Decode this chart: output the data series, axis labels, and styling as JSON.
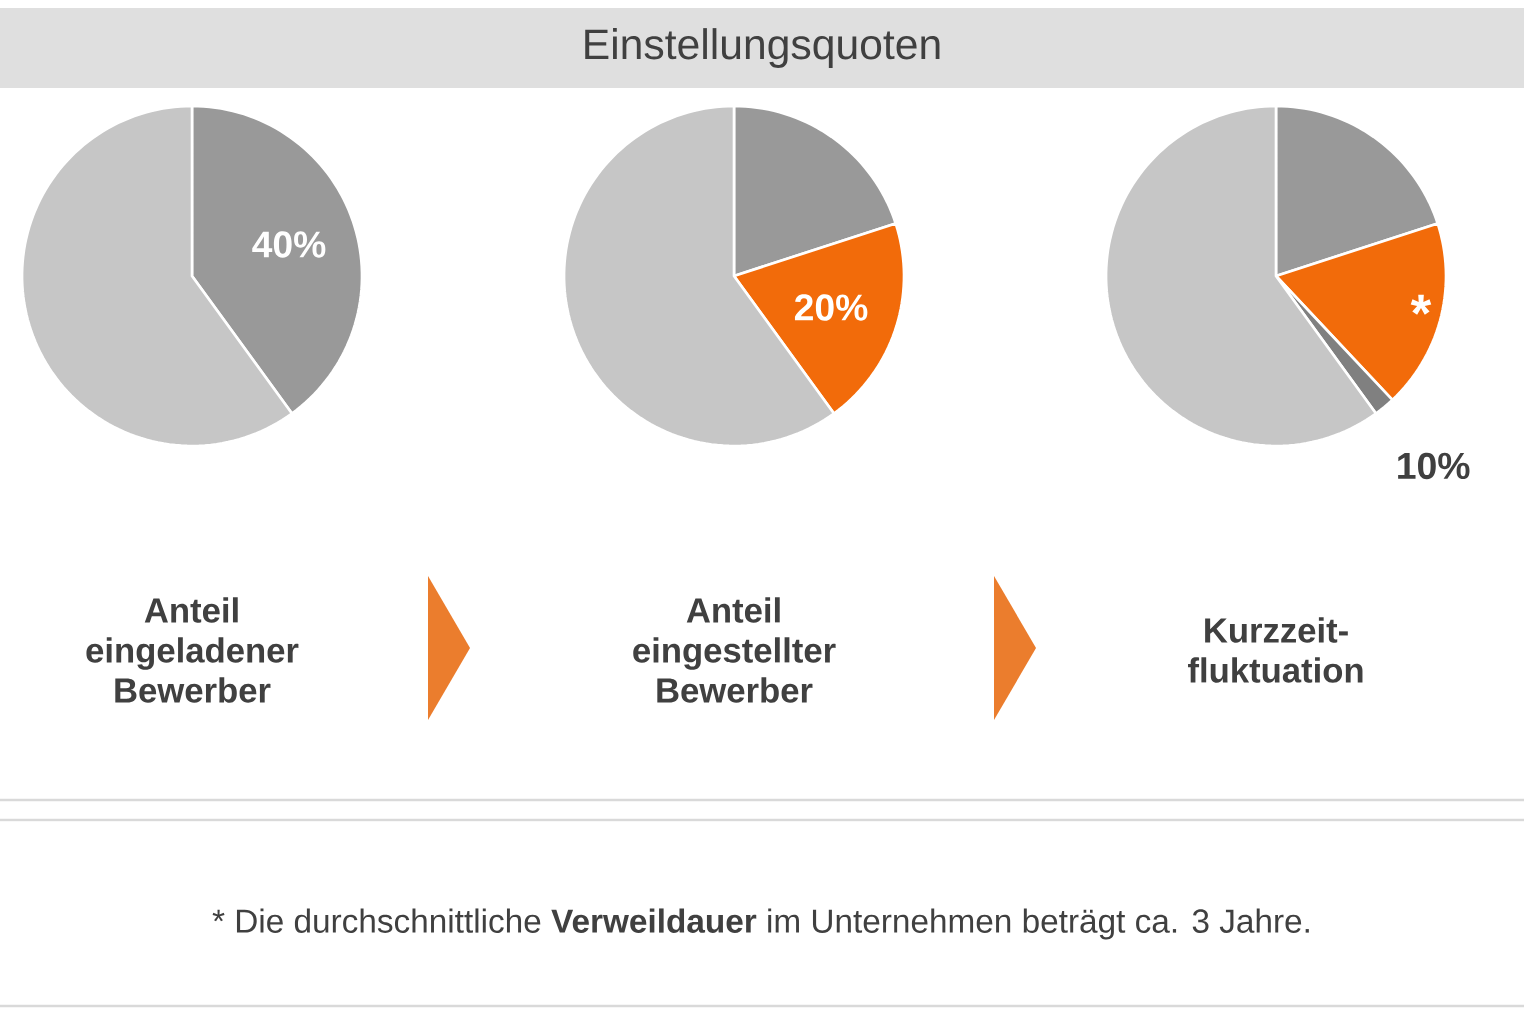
{
  "chart_data": [
    {
      "type": "pie",
      "categories": [
        null,
        null
      ],
      "values": [
        40,
        60
      ],
      "colors": [
        "#999999",
        "#c6c6c6"
      ],
      "value_labels": [
        "40%",
        null
      ],
      "xlabel": "Anteil eingeladener Bewerber"
    },
    {
      "type": "pie",
      "title": "Einstellungsquoten",
      "categories": [
        null,
        null,
        null
      ],
      "values": [
        20,
        20,
        60
      ],
      "colors": [
        "#999999",
        "#f26b0a",
        "#c6c6c6"
      ],
      "value_labels": [
        null,
        "20%",
        null
      ],
      "xlabel": "Anteil eingestellter Bewerber",
      "annotations": [
        "* Die durchschnittliche **Verweildauer** im Unternehmen beträgt ca. 3 Jahre."
      ]
    },
    {
      "type": "pie",
      "categories": [
        null,
        null,
        null,
        null
      ],
      "values": [
        20,
        18,
        2,
        60
      ],
      "colors": [
        "#999999",
        "#f26b0a",
        "#808080",
        "#c6c6c6"
      ],
      "value_labels": [
        null,
        "*",
        null,
        null
      ],
      "xlabel": "Kurzzeit-fluktuation",
      "annotations": [
        "10%"
      ]
    }
  ]
}
